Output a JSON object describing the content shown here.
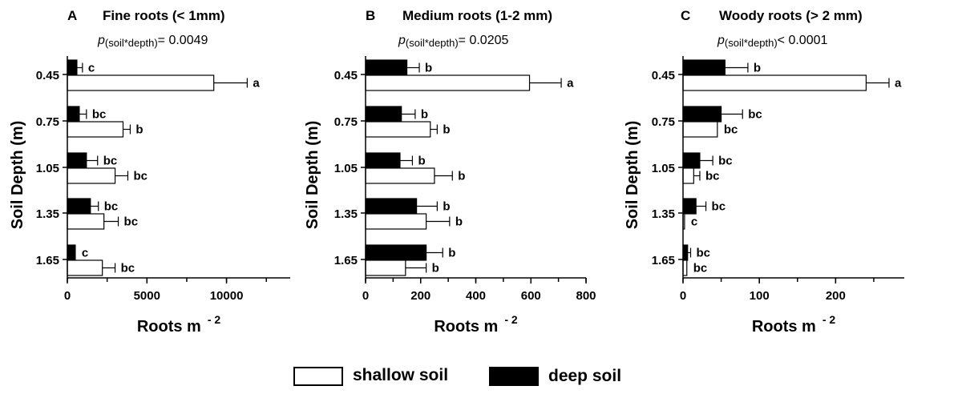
{
  "chart_data": [
    {
      "type": "bar",
      "panel_letter": "A",
      "title": "Fine roots (< 1mm)",
      "p_value": {
        "prefix": "p",
        "subscript": "(soil*depth)",
        "rest": "= 0.0049"
      },
      "ylabel": "Soil Depth (m)",
      "xlabel": "Roots  m",
      "xlabel_exponent": "- 2",
      "categories": [
        "0.45",
        "0.75",
        "1.05",
        "1.35",
        "1.65"
      ],
      "xlim": [
        0,
        14000
      ],
      "xticks": [
        0,
        5000,
        10000
      ],
      "series": [
        {
          "name": "deep soil",
          "color": "#000000",
          "values": [
            600,
            750,
            1200,
            1450,
            500
          ],
          "errors": [
            350,
            450,
            700,
            500,
            0
          ],
          "labels": [
            "c",
            "bc",
            "bc",
            "bc",
            "c"
          ]
        },
        {
          "name": "shallow soil",
          "color": "#ffffff",
          "values": [
            9200,
            3500,
            3000,
            2300,
            2200
          ],
          "errors": [
            2100,
            450,
            800,
            900,
            800
          ],
          "labels": [
            "a",
            "b",
            "bc",
            "bc",
            "bc"
          ]
        }
      ]
    },
    {
      "type": "bar",
      "panel_letter": "B",
      "title": "Medium roots (1-2 mm)",
      "p_value": {
        "prefix": "p",
        "subscript": "(soil*depth)",
        "rest": "= 0.0205"
      },
      "ylabel": "Soil Depth (m)",
      "xlabel": "Roots  m",
      "xlabel_exponent": "- 2",
      "categories": [
        "0.45",
        "0.75",
        "1.05",
        "1.35",
        "1.65"
      ],
      "xlim": [
        0,
        800
      ],
      "xticks": [
        0,
        200,
        400,
        600,
        800
      ],
      "series": [
        {
          "name": "deep soil",
          "color": "#000000",
          "values": [
            150,
            130,
            125,
            185,
            220
          ],
          "errors": [
            45,
            50,
            45,
            75,
            60
          ],
          "labels": [
            "b",
            "b",
            "b",
            "b",
            "b"
          ]
        },
        {
          "name": "shallow soil",
          "color": "#ffffff",
          "values": [
            595,
            235,
            250,
            220,
            145
          ],
          "errors": [
            115,
            25,
            65,
            85,
            75
          ],
          "labels": [
            "a",
            "b",
            "b",
            "b",
            "b"
          ]
        }
      ]
    },
    {
      "type": "bar",
      "panel_letter": "C",
      "title": "Woody roots (> 2 mm)",
      "p_value": {
        "prefix": "p",
        "subscript": "(soil*depth)",
        "rest": "< 0.0001"
      },
      "ylabel": "Soil Depth (m)",
      "xlabel": "Roots  m",
      "xlabel_exponent": "- 2",
      "categories": [
        "0.45",
        "0.75",
        "1.05",
        "1.35",
        "1.65"
      ],
      "xlim": [
        0,
        290
      ],
      "xticks": [
        0,
        100,
        200
      ],
      "series": [
        {
          "name": "deep soil",
          "color": "#000000",
          "values": [
            55,
            50,
            22,
            17,
            6
          ],
          "errors": [
            30,
            28,
            17,
            13,
            4
          ],
          "labels": [
            "b",
            "bc",
            "bc",
            "bc",
            "bc"
          ]
        },
        {
          "name": "shallow soil",
          "color": "#ffffff",
          "values": [
            240,
            45,
            14,
            2,
            5
          ],
          "errors": [
            30,
            0,
            8,
            0,
            0
          ],
          "labels": [
            "a",
            "bc",
            "bc",
            "c",
            "bc"
          ]
        }
      ]
    }
  ],
  "legend": {
    "position": "bottom-center",
    "items": [
      {
        "label": "shallow soil",
        "fill": "#ffffff"
      },
      {
        "label": "deep soil",
        "fill": "#000000"
      }
    ]
  }
}
